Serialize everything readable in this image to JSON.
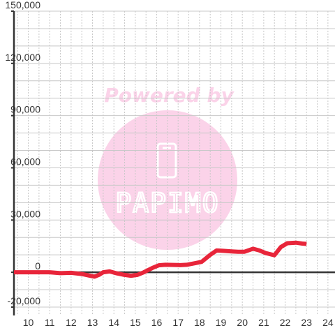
{
  "chart_data": {
    "type": "line",
    "title": "",
    "xlabel": "",
    "ylabel": "",
    "x_ticks": [
      "10",
      "11",
      "12",
      "13",
      "14",
      "15",
      "16",
      "17",
      "18",
      "19",
      "20",
      "21",
      "22",
      "23",
      "24"
    ],
    "y_ticks": [
      "150,000",
      "120,000",
      "90,000",
      "60,000",
      "30,000",
      "0",
      "-20,000"
    ],
    "xlim": [
      9.33,
      24.33
    ],
    "ylim": [
      -20000,
      150000
    ],
    "y_tick_values": [
      150000,
      120000,
      90000,
      60000,
      30000,
      0,
      -20000
    ],
    "grid": true,
    "colors": {
      "line": "#e8253a",
      "axis": "#333333",
      "grid": "#c8c8c8"
    },
    "series": [
      {
        "x": [
          9.33,
          10,
          11,
          11.5,
          12,
          12.5,
          12.8,
          13.1,
          13.3,
          13.5,
          13.8,
          14.1,
          14.5,
          14.8,
          15.1,
          15.4,
          15.8,
          16.1,
          16.4,
          16.8,
          17.1,
          17.4,
          17.8,
          18.1,
          18.5,
          18.8,
          19.1,
          19.5,
          19.8,
          20.1,
          20.5,
          20.8,
          21.1,
          21.5,
          21.8,
          22.1,
          22.5,
          22.8,
          23.0
        ],
        "y": [
          0,
          0,
          0,
          -500,
          -300,
          -1000,
          -1800,
          -2500,
          -1500,
          0,
          500,
          -500,
          -1500,
          -2000,
          -1500,
          0,
          2500,
          4000,
          4300,
          4200,
          4100,
          4300,
          5200,
          6000,
          10000,
          12500,
          12300,
          12000,
          11800,
          11800,
          13500,
          12500,
          11000,
          9800,
          14500,
          16700,
          17000,
          16500,
          16300
        ]
      }
    ]
  },
  "watermark": {
    "line1": "Powered by",
    "logo_text": "PAPIMO",
    "color": "#fbd3e9"
  }
}
